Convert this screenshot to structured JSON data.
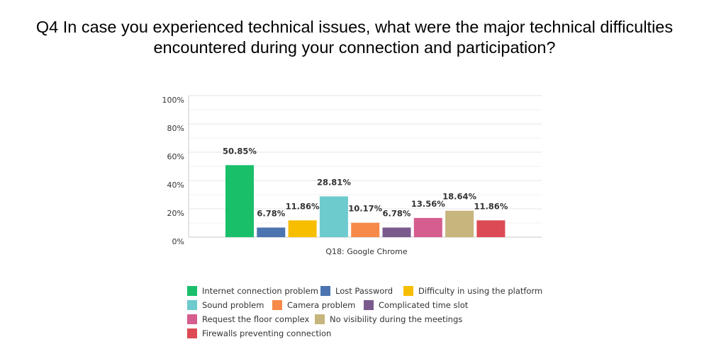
{
  "title_lines": [
    "Q4 In case you experienced technical issues, what were the major technical difficulties",
    "encountered during your connection and participation?"
  ],
  "chart_data": {
    "type": "bar",
    "categories": [
      "Q18: Google Chrome"
    ],
    "ylim": [
      0,
      100
    ],
    "yticks": [
      "0%",
      "20%",
      "40%",
      "60%",
      "80%",
      "100%"
    ],
    "grid": true,
    "legend_position": "bottom",
    "series": [
      {
        "name": "Internet connection problem",
        "color": "#1abf6a",
        "values": [
          50.85
        ],
        "label": "50.85%"
      },
      {
        "name": "Lost Password",
        "color": "#4b74b0",
        "values": [
          6.78
        ],
        "label": "6.78%"
      },
      {
        "name": "Difficulty in using the platform",
        "color": "#f7be00",
        "values": [
          11.86
        ],
        "label": "11.86%"
      },
      {
        "name": "Sound problem",
        "color": "#6dcacd",
        "values": [
          28.81
        ],
        "label": "28.81%"
      },
      {
        "name": "Camera problem",
        "color": "#f78a4a",
        "values": [
          10.17
        ],
        "label": "10.17%"
      },
      {
        "name": "Complicated time slot",
        "color": "#7a5a8d",
        "values": [
          6.78
        ],
        "label": "6.78%"
      },
      {
        "name": "Request the floor complex",
        "color": "#d55e8f",
        "values": [
          13.56
        ],
        "label": "13.56%"
      },
      {
        "name": "No visibility during the meetings",
        "color": "#c6b57d",
        "values": [
          18.64
        ],
        "label": "18.64%"
      },
      {
        "name": "Firewalls preventing connection",
        "color": "#dc4a55",
        "values": [
          11.86
        ],
        "label": "11.86%"
      }
    ]
  }
}
